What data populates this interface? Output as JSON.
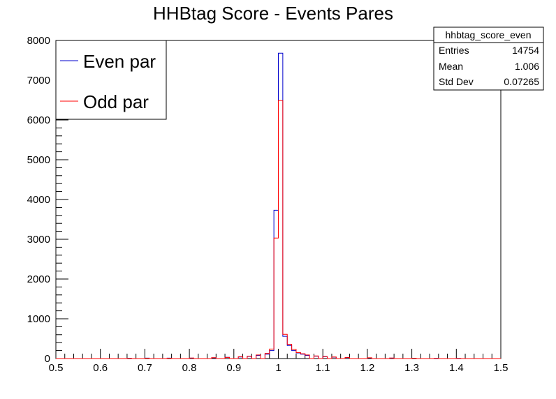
{
  "chart_data": {
    "type": "histogram",
    "title": "HHBtag Score - Events Pares",
    "xlabel": "",
    "ylabel": "",
    "xlim": [
      0.5,
      1.5
    ],
    "ylim": [
      0,
      8000
    ],
    "bin_width": 0.01,
    "x_ticks": [
      "0.5",
      "0.6",
      "0.7",
      "0.8",
      "0.9",
      "1",
      "1.1",
      "1.2",
      "1.3",
      "1.4",
      "1.5"
    ],
    "y_ticks": [
      "0",
      "1000",
      "2000",
      "3000",
      "4000",
      "5000",
      "6000",
      "7000",
      "8000"
    ],
    "legend_position": "top-left",
    "series": [
      {
        "name": "Even par",
        "color": "#0000cc",
        "bins": [
          {
            "x": 0.66,
            "value": 8
          },
          {
            "x": 0.7,
            "value": 10
          },
          {
            "x": 0.75,
            "value": 10
          },
          {
            "x": 0.8,
            "value": 12
          },
          {
            "x": 0.85,
            "value": 20
          },
          {
            "x": 0.88,
            "value": 30
          },
          {
            "x": 0.91,
            "value": 40
          },
          {
            "x": 0.93,
            "value": 55
          },
          {
            "x": 0.95,
            "value": 80
          },
          {
            "x": 0.97,
            "value": 110
          },
          {
            "x": 0.98,
            "value": 200
          },
          {
            "x": 0.99,
            "value": 3730
          },
          {
            "x": 1.0,
            "value": 7680
          },
          {
            "x": 1.01,
            "value": 560
          },
          {
            "x": 1.02,
            "value": 330
          },
          {
            "x": 1.03,
            "value": 200
          },
          {
            "x": 1.04,
            "value": 140
          },
          {
            "x": 1.05,
            "value": 110
          },
          {
            "x": 1.06,
            "value": 80
          },
          {
            "x": 1.08,
            "value": 60
          },
          {
            "x": 1.1,
            "value": 45
          },
          {
            "x": 1.12,
            "value": 35
          },
          {
            "x": 1.15,
            "value": 25
          },
          {
            "x": 1.2,
            "value": 18
          },
          {
            "x": 1.25,
            "value": 12
          },
          {
            "x": 1.3,
            "value": 8
          },
          {
            "x": 1.35,
            "value": 5
          },
          {
            "x": 1.4,
            "value": 4
          }
        ]
      },
      {
        "name": "Odd par",
        "color": "#ff0000",
        "bins": [
          {
            "x": 0.66,
            "value": 7
          },
          {
            "x": 0.7,
            "value": 9
          },
          {
            "x": 0.75,
            "value": 9
          },
          {
            "x": 0.8,
            "value": 14
          },
          {
            "x": 0.85,
            "value": 22
          },
          {
            "x": 0.88,
            "value": 28
          },
          {
            "x": 0.91,
            "value": 45
          },
          {
            "x": 0.93,
            "value": 60
          },
          {
            "x": 0.95,
            "value": 90
          },
          {
            "x": 0.97,
            "value": 130
          },
          {
            "x": 0.98,
            "value": 240
          },
          {
            "x": 0.99,
            "value": 3030
          },
          {
            "x": 1.0,
            "value": 6490
          },
          {
            "x": 1.01,
            "value": 610
          },
          {
            "x": 1.02,
            "value": 360
          },
          {
            "x": 1.03,
            "value": 230
          },
          {
            "x": 1.04,
            "value": 150
          },
          {
            "x": 1.05,
            "value": 120
          },
          {
            "x": 1.06,
            "value": 90
          },
          {
            "x": 1.08,
            "value": 65
          },
          {
            "x": 1.1,
            "value": 50
          },
          {
            "x": 1.12,
            "value": 40
          },
          {
            "x": 1.15,
            "value": 28
          },
          {
            "x": 1.2,
            "value": 20
          },
          {
            "x": 1.25,
            "value": 14
          },
          {
            "x": 1.3,
            "value": 9
          },
          {
            "x": 1.35,
            "value": 6
          },
          {
            "x": 1.4,
            "value": 4
          }
        ]
      }
    ],
    "stats_box": {
      "name": "hhbtag_score_even",
      "rows": [
        {
          "label": "Entries",
          "value": "14754"
        },
        {
          "label": "Mean",
          "value": "1.006"
        },
        {
          "label": "Std Dev",
          "value": "0.07265"
        }
      ]
    }
  }
}
